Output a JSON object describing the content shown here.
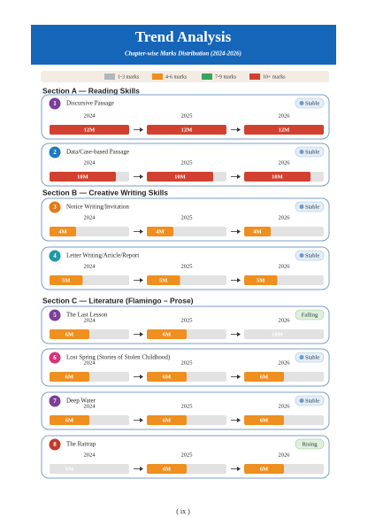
{
  "header": {
    "title": "Trend Analysis",
    "subtitle": "Chapter-wise Marks Distribution (2024-2026)"
  },
  "legend": [
    {
      "label": "1-3 marks",
      "color": "#b0b7bd"
    },
    {
      "label": "4-6 marks",
      "color": "#ef8f1f"
    },
    {
      "label": "7-9 marks",
      "color": "#3aa55d"
    },
    {
      "label": "10+ marks",
      "color": "#d2412f"
    }
  ],
  "sections": [
    {
      "title": "Section A — Reading Skills",
      "items": [
        {
          "number": "1",
          "name": "Discursive Passage",
          "status": "Stable",
          "badge_color": "#7b3f98",
          "color": "#d2412f",
          "years": [
            {
              "year": "2024",
              "marks": {
                "value": 12,
                "label": "12M"
              }
            },
            {
              "year": "2025",
              "marks": {
                "value": 12,
                "label": "12M"
              }
            },
            {
              "year": "2026",
              "marks": {
                "value": 12,
                "label": "12M"
              }
            }
          ]
        },
        {
          "number": "2",
          "name": "Data/Case-based Passage",
          "status": "Stable",
          "badge_color": "#1d7ac0",
          "color": "#d2412f",
          "years": [
            {
              "year": "2024",
              "marks": {
                "value": 10,
                "label": "10M"
              }
            },
            {
              "year": "2025",
              "marks": {
                "value": 10,
                "label": "10M"
              }
            },
            {
              "year": "2026",
              "marks": {
                "value": 10,
                "label": "10M"
              }
            }
          ]
        }
      ]
    },
    {
      "title": "Section B — Creative Writing Skills",
      "items": [
        {
          "number": "3",
          "name": "Notice Writing/Invitation",
          "status": "Stable",
          "badge_color": "#e07b1a",
          "color": "#ef8f1f",
          "years": [
            {
              "year": "2024",
              "marks": {
                "value": 4,
                "label": "4M"
              }
            },
            {
              "year": "2025",
              "marks": {
                "value": 4,
                "label": "4M"
              }
            },
            {
              "year": "2026",
              "marks": {
                "value": 4,
                "label": "4M"
              }
            }
          ]
        },
        {
          "number": "4",
          "name": "Letter Writing/Article/Report",
          "status": "Stable",
          "badge_color": "#1f9aa5",
          "color": "#ef8f1f",
          "years": [
            {
              "year": "2024",
              "marks": {
                "value": 5,
                "label": "5M"
              }
            },
            {
              "year": "2025",
              "marks": {
                "value": 5,
                "label": "5M"
              }
            },
            {
              "year": "2026",
              "marks": {
                "value": 5,
                "label": "5M"
              }
            }
          ]
        }
      ]
    },
    {
      "title": "Section C — Literature (Flamingo – Prose)",
      "items": [
        {
          "number": "5",
          "name": "The Last Lesson",
          "status": "Falling",
          "badge_color": "#7b3f98",
          "color": "#ef8f1f",
          "years": [
            {
              "year": "2024",
              "marks": {
                "value": 6,
                "label": "6M"
              }
            },
            {
              "year": "2025",
              "marks": {
                "value": 6,
                "label": "6M"
              }
            },
            {
              "year": "2026",
              "marks": {
                "value": 10,
                "label": "10M"
              },
              "faded": true
            }
          ]
        },
        {
          "number": "6",
          "name": "Lost Spring (Stories of Stolen Childhood)",
          "status": "Stable",
          "badge_color": "#d6337a",
          "color": "#ef8f1f",
          "years": [
            {
              "year": "2024",
              "marks": {
                "value": 6,
                "label": "6M"
              }
            },
            {
              "year": "2025",
              "marks": {
                "value": 6,
                "label": "6M"
              }
            },
            {
              "year": "2026",
              "marks": {
                "value": 6,
                "label": "6M"
              }
            }
          ]
        },
        {
          "number": "7",
          "name": "Deep Water",
          "status": "Stable",
          "badge_color": "#7b3f98",
          "color": "#ef8f1f",
          "years": [
            {
              "year": "2024",
              "marks": {
                "value": 6,
                "label": "6M"
              }
            },
            {
              "year": "2025",
              "marks": {
                "value": 6,
                "label": "6M"
              }
            },
            {
              "year": "2026",
              "marks": {
                "value": 6,
                "label": "6M"
              }
            }
          ]
        },
        {
          "number": "8",
          "name": "The Rattrap",
          "status": "Rising",
          "badge_color": "#c0392b",
          "color": "#ef8f1f",
          "years": [
            {
              "year": "2024",
              "marks": {
                "value": 6,
                "label": "6M"
              },
              "faded": true
            },
            {
              "year": "2025",
              "marks": {
                "value": 6,
                "label": "6M"
              }
            },
            {
              "year": "2026",
              "marks": {
                "value": 6,
                "label": "6M"
              }
            }
          ]
        }
      ]
    }
  ],
  "footer": "( ix )"
}
